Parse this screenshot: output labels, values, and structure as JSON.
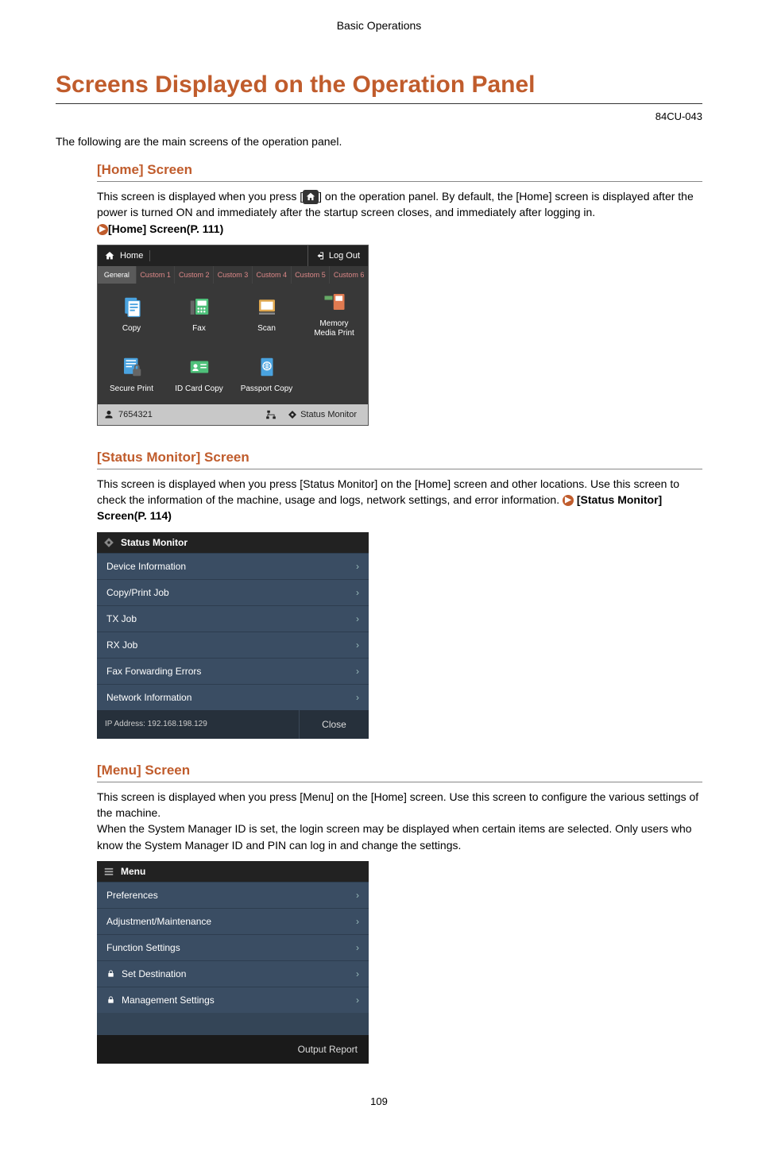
{
  "header": "Basic Operations",
  "title": "Screens Displayed on the Operation Panel",
  "doc_code": "84CU-043",
  "intro": "The following are the main screens of the operation panel.",
  "page_number": "109",
  "sections": {
    "home": {
      "title": "[Home] Screen",
      "body_part1": "This screen is displayed when you press [",
      "body_part2": "] on the operation panel. By default, the [Home] screen is displayed after the power is turned ON and immediately after the startup screen closes, and immediately after logging in.",
      "link": "[Home] Screen(P. 111)"
    },
    "status": {
      "title": "[Status Monitor] Screen",
      "body": "This screen is displayed when you press [Status Monitor] on the [Home] screen and other locations. Use this screen to check the information of the machine, usage and logs, network settings, and error information.",
      "link": "[Status Monitor] Screen(P. 114)"
    },
    "menu": {
      "title": "[Menu] Screen",
      "body1": "This screen is displayed when you press [Menu] on the [Home] screen. Use this screen to configure the various settings of the machine.",
      "body2": "When the System Manager ID is set, the login screen may be displayed when certain items are selected. Only users who know the System Manager ID and PIN can log in and change the settings."
    }
  },
  "home_panel": {
    "top_left": "Home",
    "top_right": "Log Out",
    "tabs": [
      "General",
      "Custom 1",
      "Custom 2",
      "Custom 3",
      "Custom 4",
      "Custom 5",
      "Custom 6"
    ],
    "grid_row1": [
      "Copy",
      "Fax",
      "Scan",
      "Memory\nMedia Print"
    ],
    "grid_row2": [
      "Secure Print",
      "ID Card Copy",
      "Passport Copy",
      ""
    ],
    "user_id": "7654321",
    "status_label": "Status Monitor",
    "colors": {
      "copy": "#4aa3e0",
      "fax": "#4ec07a",
      "scan": "#e0a850",
      "memory": "#e07a50",
      "secure": "#4aa3e0",
      "idcard": "#4ec07a",
      "passport": "#4aa3e0"
    }
  },
  "status_panel": {
    "header": "Status Monitor",
    "items": [
      "Device Information",
      "Copy/Print Job",
      "TX Job",
      "RX Job",
      "Fax Forwarding Errors",
      "Network Information"
    ],
    "ip_label": "IP Address: 192.168.198.129",
    "close": "Close"
  },
  "menu_panel": {
    "header": "Menu",
    "items": [
      {
        "label": "Preferences",
        "locked": false
      },
      {
        "label": "Adjustment/Maintenance",
        "locked": false
      },
      {
        "label": "Function Settings",
        "locked": false
      },
      {
        "label": "Set Destination",
        "locked": true
      },
      {
        "label": "Management Settings",
        "locked": true
      }
    ],
    "footer": "Output Report"
  }
}
